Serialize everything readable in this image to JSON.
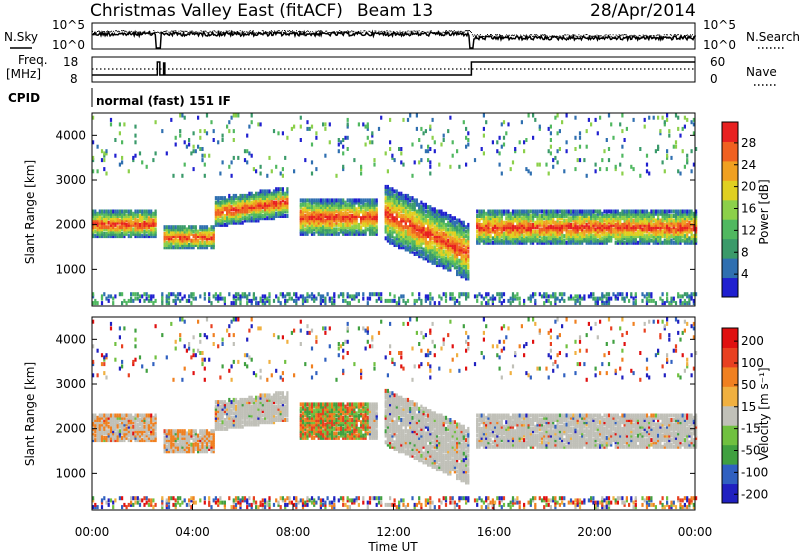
{
  "header": {
    "title": "Christmas Valley East (fitACF)",
    "beam": "Beam 13",
    "date": "28/Apr/2014"
  },
  "noise_panel": {
    "left_label": "N.Sky",
    "right_label": "N.Search",
    "left_ticks": [
      "10^5",
      "10^0"
    ],
    "right_ticks": [
      "10^5",
      "10^0"
    ]
  },
  "freq_panel": {
    "left_label_1": "Freq.",
    "left_label_2": "[MHz]",
    "right_label": "Nave",
    "left_ticks": [
      "18",
      "8"
    ],
    "right_ticks": [
      "60",
      "0"
    ]
  },
  "cpid": {
    "label": "CPID",
    "value": "normal (fast) 151 IF"
  },
  "colors": {
    "power": [
      "#2020d0",
      "#2f6fb0",
      "#3a9a6a",
      "#50b860",
      "#8cd04a",
      "#e0d020",
      "#f0a020",
      "#f06020",
      "#e82020"
    ],
    "velocity": [
      "#2020c0",
      "#3060c0",
      "#40a040",
      "#70c040",
      "#c0c0b8",
      "#f0b040",
      "#f08020",
      "#e84020",
      "#e01010"
    ],
    "background_noise": "#808080"
  },
  "chart_data": [
    {
      "type": "heatmap",
      "name": "power",
      "ylabel": "Slant Range [km]",
      "yticks": [
        1000,
        2000,
        3000,
        4000
      ],
      "ylim": [
        180,
        4500
      ],
      "xlim": [
        0,
        24
      ],
      "colorbar_label": "Power [dB]",
      "colorbar_ticks": [
        "4",
        "8",
        "12",
        "16",
        "20",
        "24",
        "28"
      ],
      "gaps_hours": [
        2.65,
        15.1
      ],
      "echo_bands": [
        {
          "t0": 0.0,
          "t1": 2.6,
          "r0": 1650,
          "r1": 2300
        },
        {
          "t0": 2.8,
          "t1": 4.8,
          "r0": 1400,
          "r1": 1950
        },
        {
          "t0": 4.8,
          "t1": 7.8,
          "r0": 1900,
          "r1": 2550
        },
        {
          "t0": 8.2,
          "t1": 11.3,
          "r0": 1700,
          "r1": 2550
        },
        {
          "t0": 11.6,
          "t1": 15.0,
          "r0": 1150,
          "r1": 2400
        },
        {
          "t0": 15.2,
          "t1": 24.0,
          "r0": 1500,
          "r1": 2300
        }
      ]
    },
    {
      "type": "heatmap",
      "name": "velocity",
      "ylabel": "Slant Range [km]",
      "xlabel": "Time UT",
      "yticks": [
        1000,
        2000,
        3000,
        4000
      ],
      "ylim": [
        180,
        4500
      ],
      "xlim": [
        0,
        24
      ],
      "xticks": [
        "00:00",
        "04:00",
        "08:00",
        "12:00",
        "16:00",
        "20:00",
        "00:00"
      ],
      "colorbar_label": "Velocity [m s⁻¹]",
      "colorbar_ticks": [
        "200",
        "100",
        "50",
        "15",
        "-15",
        "-50",
        "-100",
        "-200"
      ]
    }
  ]
}
